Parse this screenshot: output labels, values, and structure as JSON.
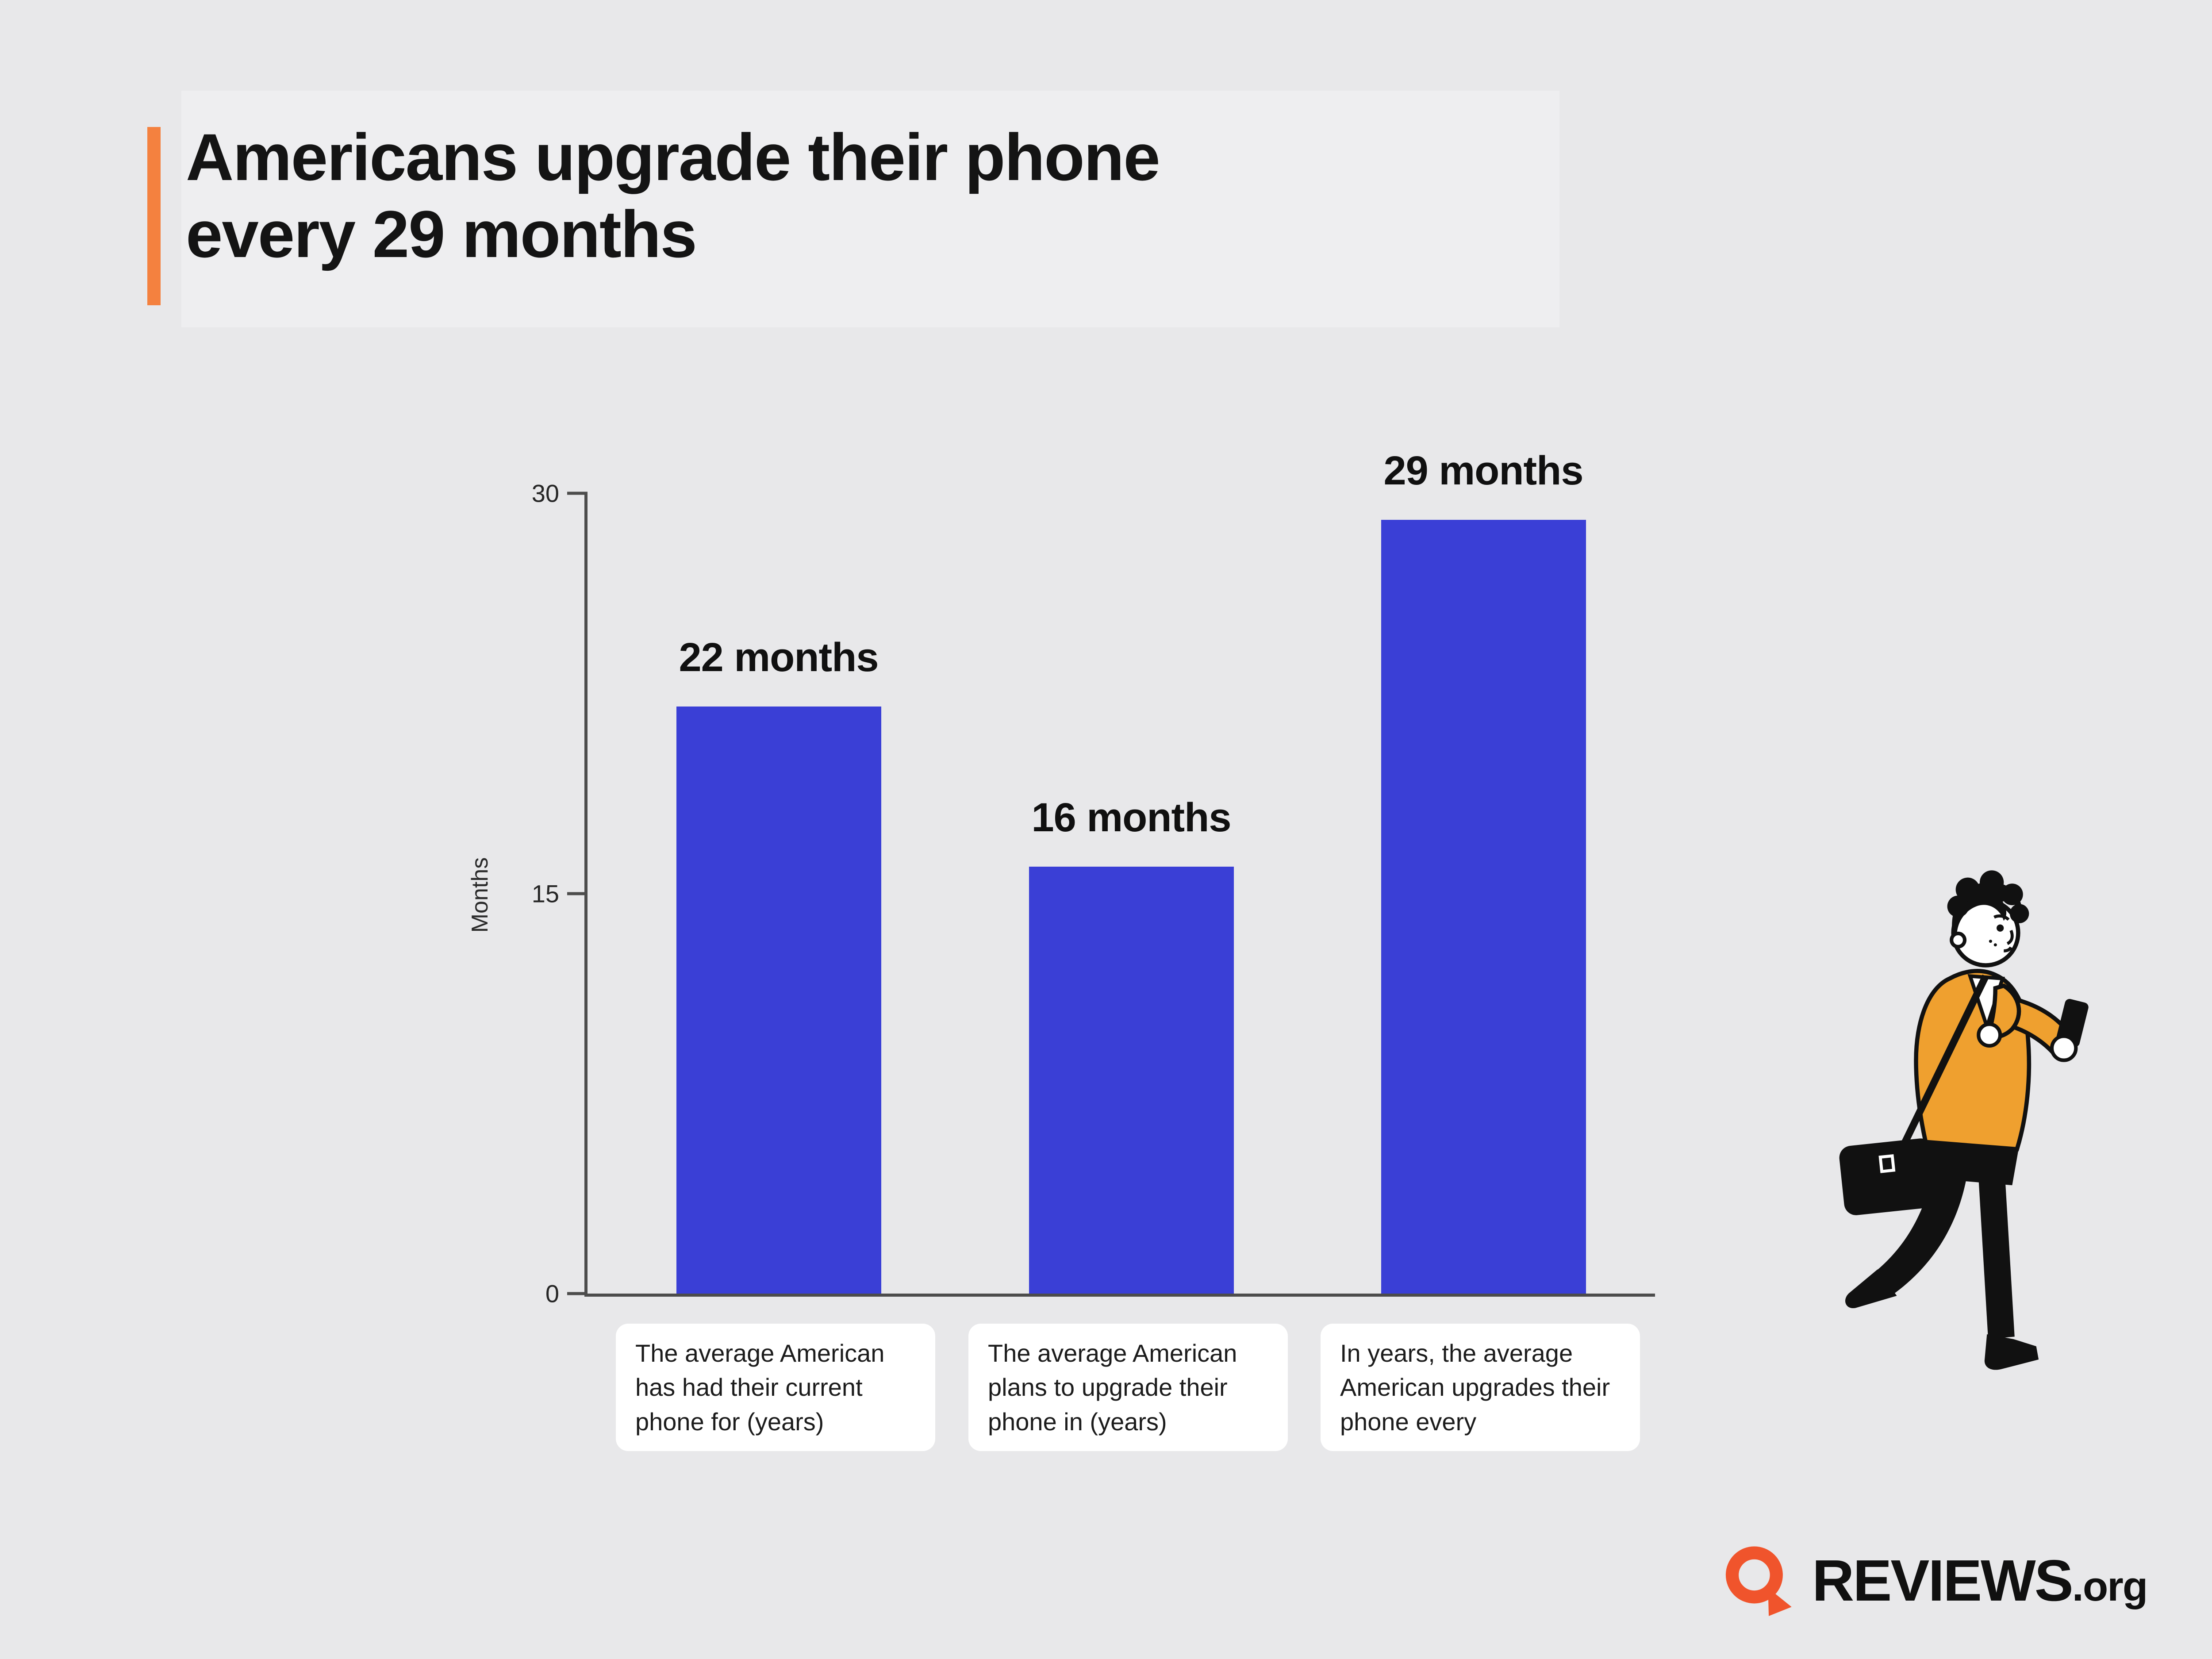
{
  "page": {
    "background": "#e8e8ea",
    "accent_orange": "#f4813f",
    "logo_orange": "#f0542c"
  },
  "header": {
    "title_line1": "Americans upgrade their phone",
    "title_line2": "every 29 months"
  },
  "chart_data": {
    "type": "bar",
    "title": "Americans upgrade their phone every 29 months",
    "xlabel": "",
    "ylabel": "Months",
    "ylim": [
      0,
      30
    ],
    "yticks": [
      0,
      15,
      30
    ],
    "grid": false,
    "legend": false,
    "bar_color": "#3a3fd6",
    "categories": [
      "The average American has had their current phone for (years)",
      "The average American plans to upgrade their phone in (years)",
      "In years, the average American upgrades their phone every"
    ],
    "values": [
      22,
      16,
      29
    ],
    "bar_labels": [
      "22 months",
      "16 months",
      "29 months"
    ]
  },
  "footer": {
    "brand": "REVIEWS",
    "brand_suffix": ".org"
  },
  "illustration": {
    "description": "person in orange jacket walking while looking at phone"
  }
}
